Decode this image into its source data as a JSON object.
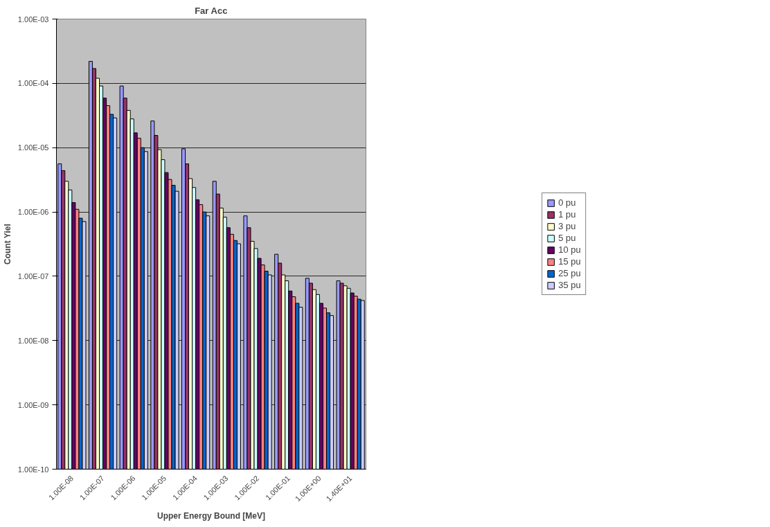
{
  "chart_data": {
    "type": "bar",
    "title": "Far Acc",
    "xlabel": "Upper Energy Bound [MeV]",
    "ylabel": "Count Yiel",
    "categories": [
      "1.00E-08",
      "1.00E-07",
      "1.00E-06",
      "1.00E-05",
      "1.00E-04",
      "1.00E-03",
      "1.00E-02",
      "1.00E-01",
      "1.00E+00",
      "1.40E+01"
    ],
    "log": true,
    "ylim": [
      1e-10,
      0.001
    ],
    "yticks": [
      {
        "value": 1e-10,
        "label": "1.00E-10"
      },
      {
        "value": 1e-09,
        "label": "1.00E-09"
      },
      {
        "value": 1e-08,
        "label": "1.00E-08"
      },
      {
        "value": 1e-07,
        "label": "1.00E-07"
      },
      {
        "value": 1e-06,
        "label": "1.00E-06"
      },
      {
        "value": 1e-05,
        "label": "1.00E-05"
      },
      {
        "value": 0.0001,
        "label": "1.00E-04"
      },
      {
        "value": 0.001,
        "label": "1.00E-03"
      }
    ],
    "grid": "y",
    "legend": "right",
    "series": [
      {
        "name": "0 pu",
        "color": "#9999ff",
        "values": [
          5.6e-06,
          0.00022,
          9.1e-05,
          2.6e-05,
          9.6e-06,
          3e-06,
          8.7e-07,
          2.2e-07,
          9.3e-08,
          8.5e-08
        ]
      },
      {
        "name": "1 pu",
        "color": "#993366",
        "values": [
          4.4e-06,
          0.00017,
          5.9e-05,
          1.55e-05,
          5.6e-06,
          1.9e-06,
          5.7e-07,
          1.6e-07,
          7.8e-08,
          7.8e-08
        ]
      },
      {
        "name": "3 pu",
        "color": "#ffffcc",
        "values": [
          3e-06,
          0.00012,
          3.8e-05,
          9.3e-06,
          3.3e-06,
          1.15e-06,
          3.5e-07,
          1.05e-07,
          6.2e-08,
          7.1e-08
        ]
      },
      {
        "name": "5 pu",
        "color": "#ccffff",
        "values": [
          2.2e-06,
          9.1e-05,
          2.8e-05,
          6.5e-06,
          2.4e-06,
          8.3e-07,
          2.7e-07,
          8.5e-08,
          5.2e-08,
          6.5e-08
        ]
      },
      {
        "name": "10 pu",
        "color": "#660066",
        "values": [
          1.4e-06,
          5.9e-05,
          1.7e-05,
          4.1e-06,
          1.55e-06,
          5.7e-07,
          1.9e-07,
          5.9e-08,
          3.8e-08,
          5.5e-08
        ]
      },
      {
        "name": "15 pu",
        "color": "#ff8080",
        "values": [
          1.1e-06,
          4.5e-05,
          1.4e-05,
          3.2e-06,
          1.3e-06,
          4.5e-07,
          1.5e-07,
          4.8e-08,
          3.2e-08,
          4.9e-08
        ]
      },
      {
        "name": "25 pu",
        "color": "#0066cc",
        "values": [
          8e-07,
          3.3e-05,
          1e-05,
          2.6e-06,
          1e-06,
          3.6e-07,
          1.2e-07,
          3.8e-08,
          2.7e-08,
          4.4e-08
        ]
      },
      {
        "name": "35 pu",
        "color": "#ccccff",
        "values": [
          7.1e-07,
          2.9e-05,
          8.7e-06,
          2.1e-06,
          8.7e-07,
          3.2e-07,
          1.05e-07,
          3.3e-08,
          2.45e-08,
          4.2e-08
        ]
      }
    ]
  }
}
